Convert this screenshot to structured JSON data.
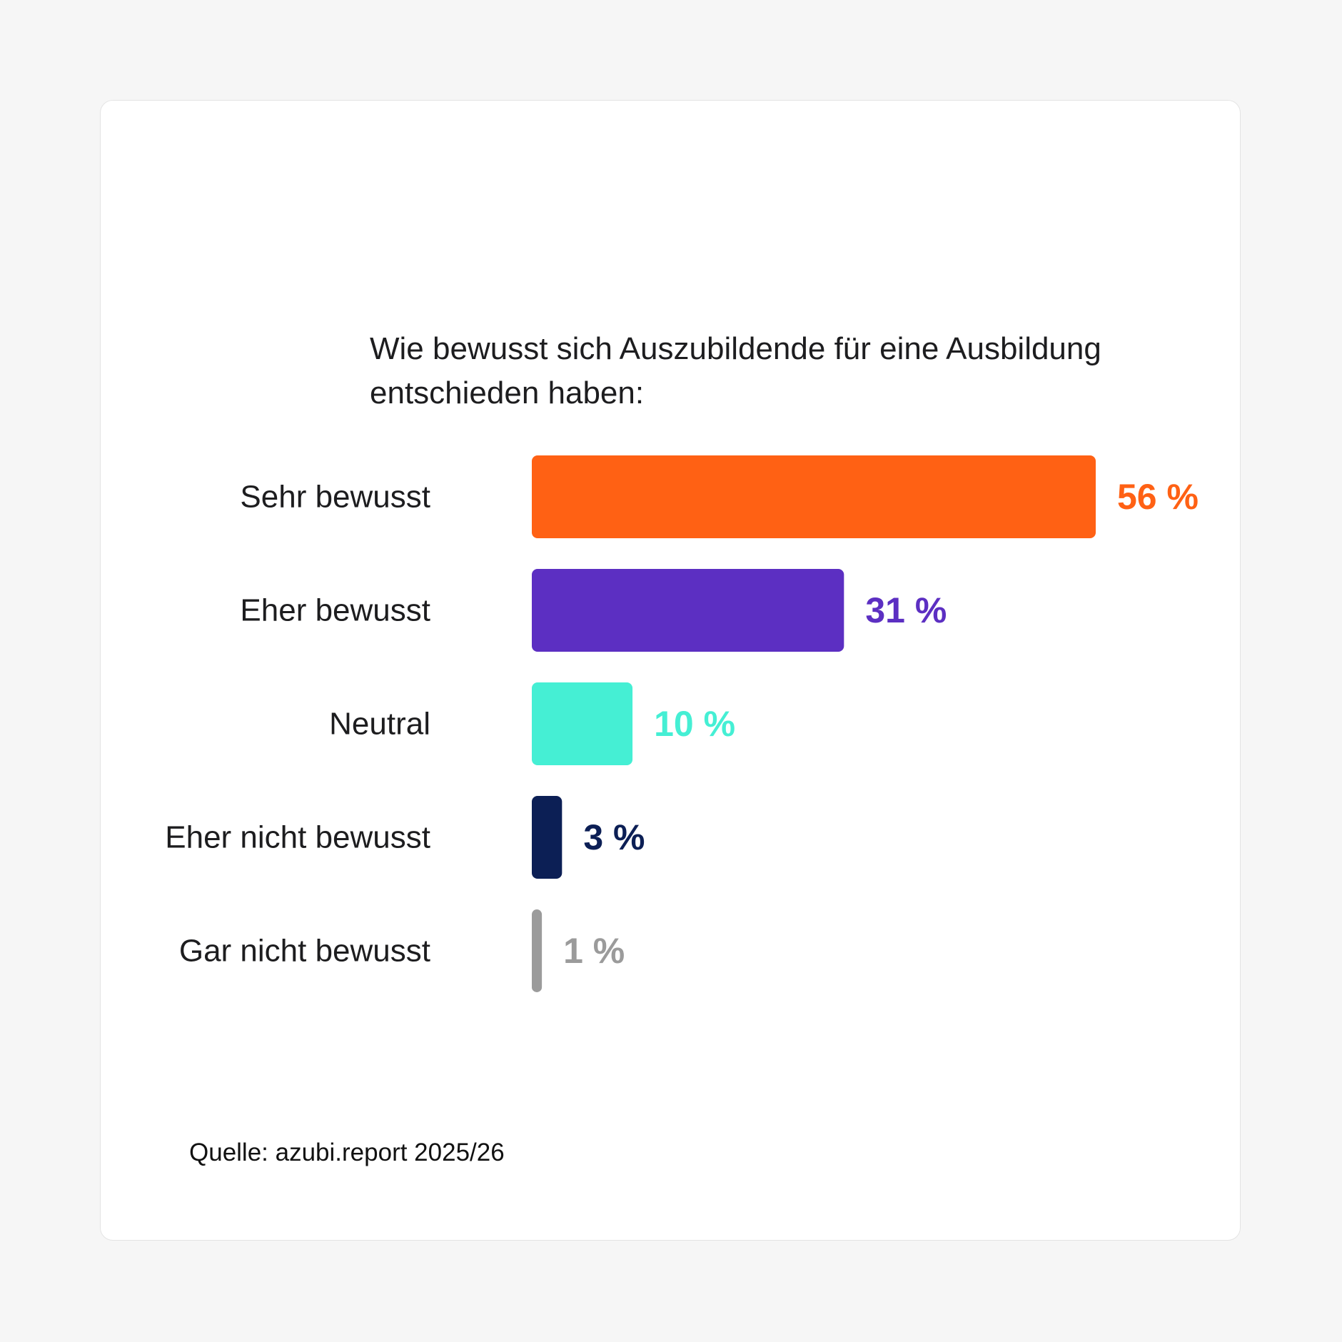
{
  "chart_data": {
    "type": "bar",
    "orientation": "horizontal",
    "title": "Wie bewusst sich Auszubildende für eine Ausbildung entschieden haben:",
    "categories": [
      "Sehr bewusst",
      "Eher bewusst",
      "Neutral",
      "Eher nicht bewusst",
      "Gar nicht bewusst"
    ],
    "values": [
      56,
      31,
      10,
      3,
      1
    ],
    "value_labels": [
      "56 %",
      "31 %",
      "10 %",
      "3 %",
      "1 %"
    ],
    "colors": [
      "#ff6114",
      "#5c2fc2",
      "#45efd4",
      "#0c1f55",
      "#9b9b9b"
    ],
    "xlim": [
      0,
      56
    ],
    "grid": false,
    "legend": "none"
  },
  "footer": {
    "source": "Quelle: azubi.report 2025/26"
  }
}
